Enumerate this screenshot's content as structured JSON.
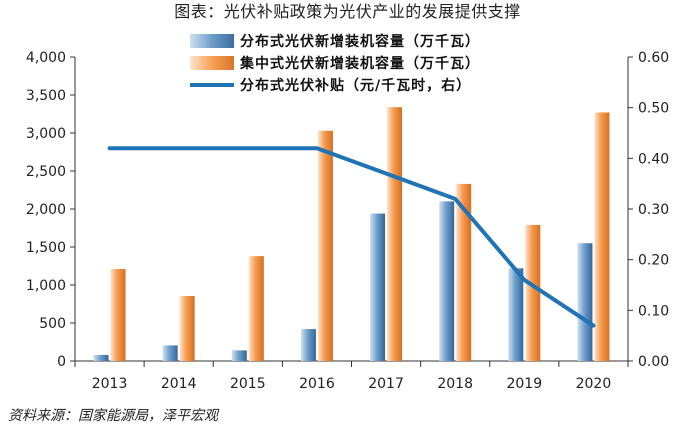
{
  "title": "图表：光伏补贴政策为光伏产业的发展提供支撑",
  "source": "资料来源：国家能源局，泽平宏观",
  "colors": {
    "series1": "#4a7fb5",
    "series2": "#ee8a3a",
    "line": "#1f73b7",
    "axis": "#333333"
  },
  "chart_data": {
    "type": "bar+line",
    "categories": [
      "2013",
      "2014",
      "2015",
      "2016",
      "2017",
      "2018",
      "2019",
      "2020"
    ],
    "series": [
      {
        "name": "分布式光伏新增装机容量（万千瓦）",
        "type": "bar",
        "axis": "left",
        "values": [
          80,
          205,
          140,
          420,
          1940,
          2100,
          1220,
          1550
        ]
      },
      {
        "name": "集中式光伏新增装机容量（万千瓦）",
        "type": "bar",
        "axis": "left",
        "values": [
          1210,
          855,
          1380,
          3030,
          3340,
          2330,
          1790,
          3270
        ]
      },
      {
        "name": "分布式光伏补贴（元/千瓦时，右）",
        "type": "line",
        "axis": "right",
        "values": [
          0.42,
          0.42,
          0.42,
          0.42,
          0.37,
          0.32,
          0.16,
          0.07
        ]
      }
    ],
    "y_left": {
      "min": 0,
      "max": 4000,
      "step": 500,
      "tick_labels": [
        "0",
        "500",
        "1,000",
        "1,500",
        "2,000",
        "2,500",
        "3,000",
        "3,500",
        "4,000"
      ]
    },
    "y_right": {
      "min": 0,
      "max": 0.6,
      "step": 0.1,
      "tick_labels": [
        "0.00",
        "0.10",
        "0.20",
        "0.30",
        "0.40",
        "0.50",
        "0.60"
      ]
    },
    "legend_position": "top-center",
    "grid": false
  }
}
